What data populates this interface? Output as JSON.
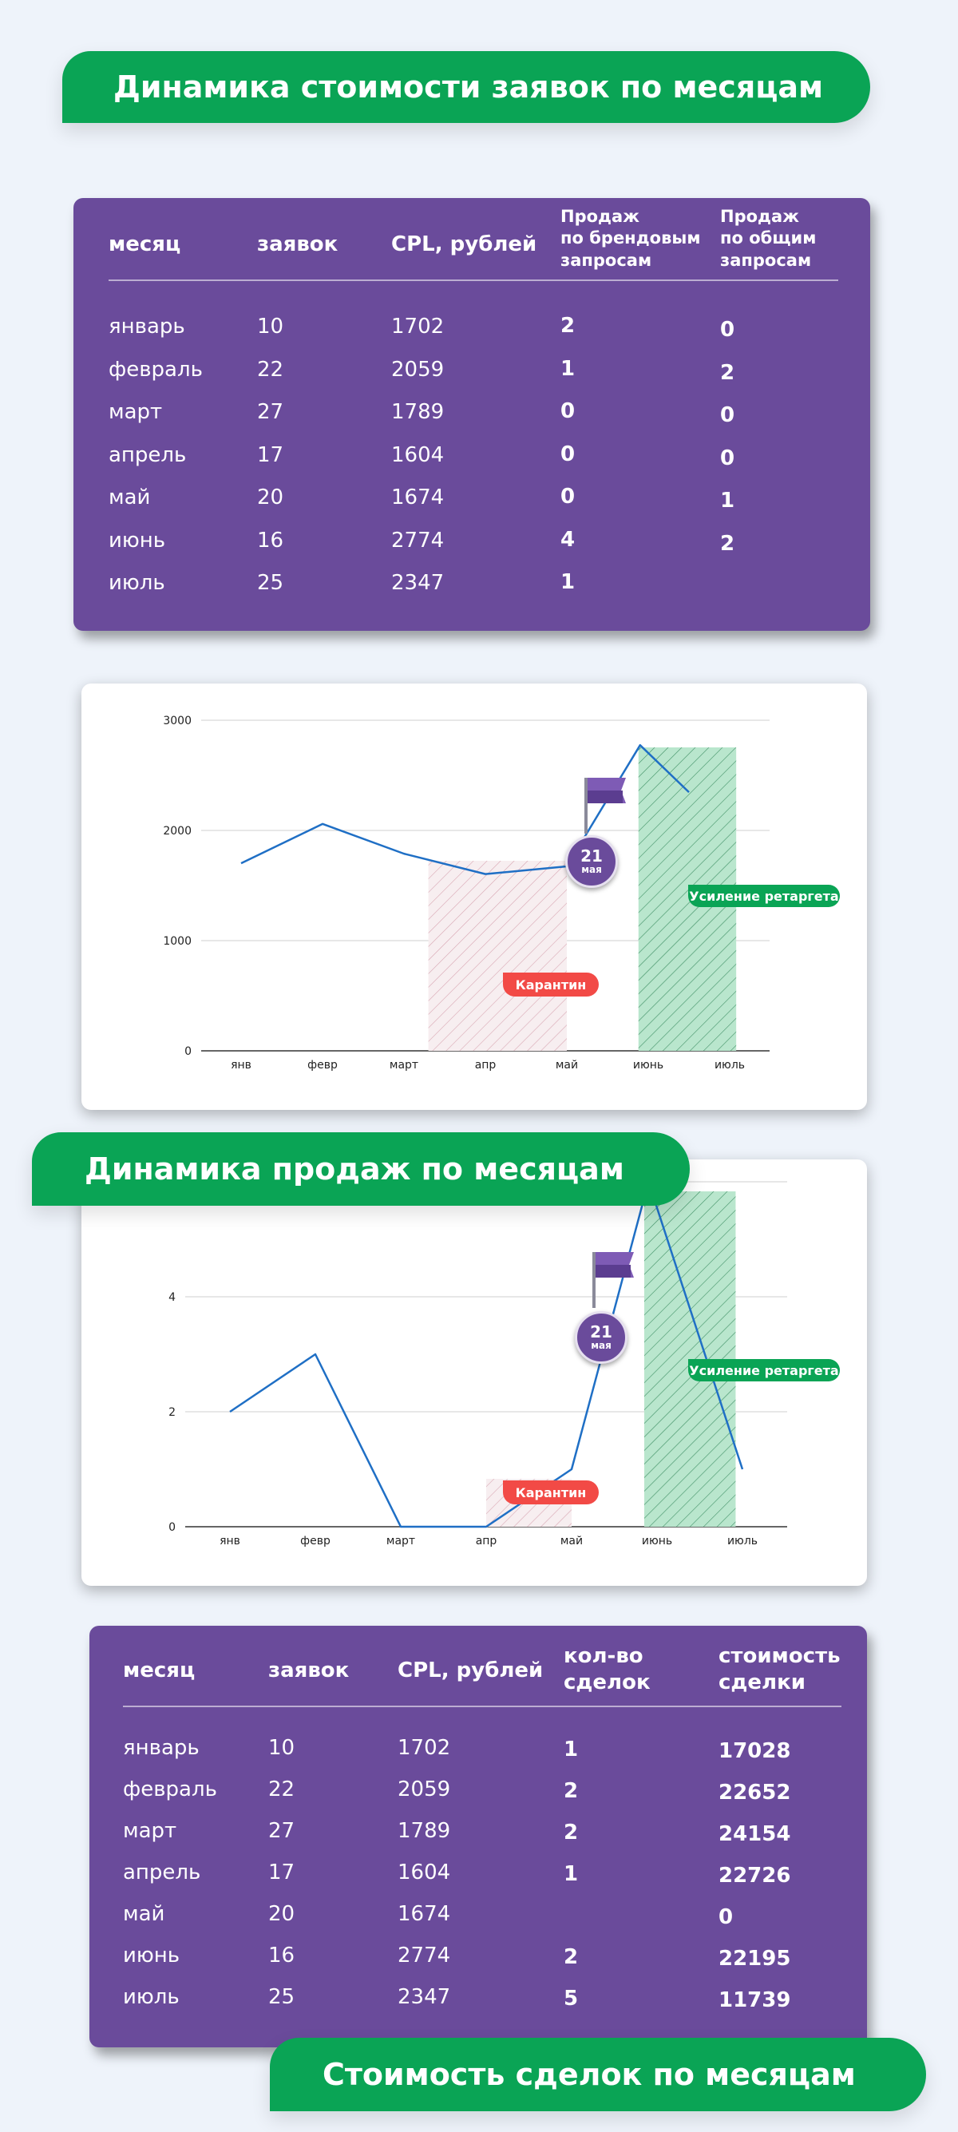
{
  "banner1": "Динамика стоимости заявок по месяцам",
  "banner2": "Динамика продаж по месяцам",
  "banner3": "Стоимость сделок по месяцам",
  "table1": {
    "headers": [
      "месяц",
      "заявок",
      "CPL, рублей",
      "Продаж\nпо брендовым\nзапросам",
      "Продаж\nпо общим\nзапросам"
    ],
    "rows": [
      [
        "январь",
        "10",
        "1702",
        "2",
        "0"
      ],
      [
        "февраль",
        "22",
        "2059",
        "1",
        "2"
      ],
      [
        "март",
        "27",
        "1789",
        "0",
        "0"
      ],
      [
        "апрель",
        "17",
        "1604",
        "0",
        "0"
      ],
      [
        "май",
        "20",
        "1674",
        "0",
        "1"
      ],
      [
        "июнь",
        "16",
        "2774",
        "4",
        "2"
      ],
      [
        "июль",
        "25",
        "2347",
        "1",
        ""
      ]
    ]
  },
  "table2": {
    "headers": [
      "месяц",
      "заявок",
      "CPL, рублей",
      "кол-во\nсделок",
      "стоимость\nсделки"
    ],
    "rows": [
      [
        "январь",
        "10",
        "1702",
        "1",
        "17028"
      ],
      [
        "февраль",
        "22",
        "2059",
        "2",
        "22652"
      ],
      [
        "март",
        "27",
        "1789",
        "2",
        "24154"
      ],
      [
        "апрель",
        "17",
        "1604",
        "1",
        "22726"
      ],
      [
        "май",
        "20",
        "1674",
        "",
        "0"
      ],
      [
        "июнь",
        "16",
        "2774",
        "2",
        "22195"
      ],
      [
        "июль",
        "25",
        "2347",
        "5",
        "11739"
      ]
    ]
  },
  "annotations": {
    "quarantine": "Карантин",
    "retarget": "Усиление ретаргета",
    "badge_day": "21",
    "badge_month": "мая"
  },
  "colors": {
    "line": "#1f6fc5",
    "green": "#0aa455",
    "red": "#f24a46",
    "purple": "#6a4b9b"
  },
  "chart_data": [
    {
      "type": "line",
      "categories": [
        "янв",
        "февр",
        "март",
        "апр",
        "май",
        "июнь",
        "июль"
      ],
      "x": [
        0,
        1,
        2,
        3,
        4,
        4.9,
        5.5
      ],
      "values": [
        1702,
        2059,
        1789,
        1604,
        1674,
        2774,
        2347
      ],
      "ylim": [
        0,
        3000
      ],
      "yticks": [
        0,
        1000,
        2000,
        3000
      ],
      "grid": true,
      "shaded_regions": [
        {
          "label": "Карантин",
          "from": 2.3,
          "to": 4.0,
          "color": "red"
        },
        {
          "label": "Усиление ретаргета",
          "from": 4.88,
          "to": 6.08,
          "color": "green"
        }
      ]
    },
    {
      "type": "line",
      "categories": [
        "янв",
        "февр",
        "март",
        "апр",
        "май",
        "июнь",
        "июль"
      ],
      "x": [
        0,
        1,
        2,
        3,
        4,
        4.9,
        6.0
      ],
      "values": [
        2,
        3,
        0,
        0,
        1,
        6,
        1
      ],
      "ylim": [
        0,
        6
      ],
      "yticks": [
        0,
        2,
        4
      ],
      "grid": true,
      "shaded_regions": [
        {
          "label": "Карантин",
          "from": 3.0,
          "to": 4.0,
          "color": "red"
        },
        {
          "label": "Усиление ретаргета",
          "from": 4.85,
          "to": 5.92,
          "color": "green"
        }
      ]
    }
  ]
}
